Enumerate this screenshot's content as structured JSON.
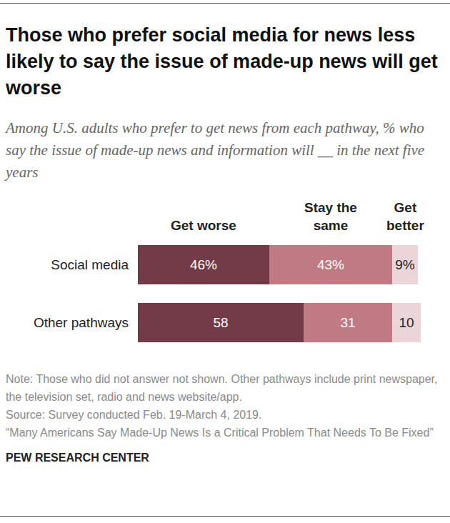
{
  "chart_data": {
    "type": "bar",
    "orientation": "horizontal",
    "stacked": true,
    "data_labels": true,
    "tick_labels": "y",
    "grid": false,
    "title": "Those who prefer social media for news less likely to say the issue of made-up news will get worse",
    "subtitle": "Among U.S. adults who prefer to get news from each pathway, % who say the issue of made-up news and information will __ in the next five years",
    "categories": [
      "Social media",
      "Other pathways"
    ],
    "xlim": [
      0,
      100
    ],
    "series": [
      {
        "name": "Get worse",
        "color": "#733b47",
        "values": [
          46,
          58
        ],
        "value_labels": [
          "46%",
          "58"
        ]
      },
      {
        "name": "Stay the same",
        "color": "#c07a84",
        "values": [
          43,
          31
        ],
        "value_labels": [
          "43%",
          "31"
        ]
      },
      {
        "name": "Get better",
        "color": "#ecd5d8",
        "values": [
          9,
          10
        ],
        "value_labels": [
          "9%",
          "10"
        ]
      }
    ],
    "annotations": [
      "Note: Those who did not answer not shown. Other pathways include print newspaper, the television set, radio and news website/app.",
      "Source: Survey conducted Feb. 19-March 4, 2019.",
      "“Many Americans Say Made-Up News Is a Critical Problem That Needs To Be Fixed”",
      "PEW RESEARCH CENTER"
    ]
  }
}
